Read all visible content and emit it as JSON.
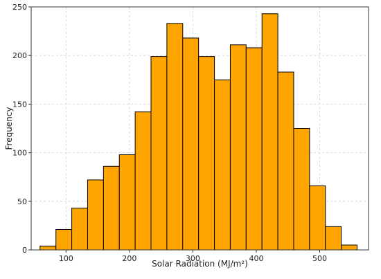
{
  "chart_data": {
    "type": "bar",
    "subtype": "histogram",
    "xlabel": "Solar Radiation (MJ/m²)",
    "ylabel": "Frequency",
    "xlim": [
      45,
      577
    ],
    "ylim": [
      0,
      250
    ],
    "x_ticks": [
      100,
      200,
      300,
      400,
      500
    ],
    "y_ticks": [
      0,
      50,
      100,
      150,
      200,
      250
    ],
    "grid": true,
    "bins": [
      {
        "x0": 59,
        "x1": 84,
        "value": 4
      },
      {
        "x0": 84,
        "x1": 109,
        "value": 21
      },
      {
        "x0": 109,
        "x1": 134,
        "value": 43
      },
      {
        "x0": 134,
        "x1": 159,
        "value": 72
      },
      {
        "x0": 159,
        "x1": 184,
        "value": 86
      },
      {
        "x0": 184,
        "x1": 209,
        "value": 98
      },
      {
        "x0": 209,
        "x1": 234,
        "value": 142
      },
      {
        "x0": 234,
        "x1": 259,
        "value": 199
      },
      {
        "x0": 259,
        "x1": 284,
        "value": 233
      },
      {
        "x0": 284,
        "x1": 309,
        "value": 218
      },
      {
        "x0": 309,
        "x1": 334,
        "value": 199
      },
      {
        "x0": 334,
        "x1": 359,
        "value": 175
      },
      {
        "x0": 359,
        "x1": 384,
        "value": 211
      },
      {
        "x0": 384,
        "x1": 409,
        "value": 208
      },
      {
        "x0": 409,
        "x1": 434,
        "value": 243
      },
      {
        "x0": 434,
        "x1": 459,
        "value": 183
      },
      {
        "x0": 459,
        "x1": 484,
        "value": 125
      },
      {
        "x0": 484,
        "x1": 509,
        "value": 66
      },
      {
        "x0": 509,
        "x1": 534,
        "value": 24
      },
      {
        "x0": 534,
        "x1": 559,
        "value": 5
      }
    ],
    "colors": {
      "bar_fill": "#FFA500",
      "bar_edge": "#000000",
      "grid": "#d0d0d0"
    }
  }
}
